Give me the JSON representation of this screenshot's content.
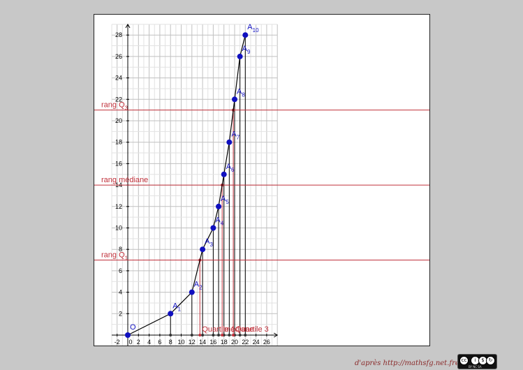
{
  "credit": "d'après http://mathsfg.net.free.fr",
  "license_badge": {
    "icon": "creative-commons-by-nc-sa-icon",
    "label": "BY NC SA"
  },
  "colors": {
    "points": "#1010c0",
    "curve": "#000000",
    "horizontal": "#c0303a",
    "vertical_red": "#c0303a",
    "grid": "#c0c0c0",
    "point_labels": "#1010c0",
    "annotations": "#c0303a"
  },
  "chart_data": {
    "type": "line",
    "xlim": [
      -3,
      28
    ],
    "ylim": [
      -1,
      29
    ],
    "grid": true,
    "x_ticks": [
      -2,
      0,
      2,
      4,
      6,
      8,
      10,
      12,
      14,
      16,
      18,
      20,
      22,
      24,
      26
    ],
    "y_ticks": [
      2,
      4,
      6,
      8,
      10,
      12,
      14,
      16,
      18,
      20,
      22,
      24,
      26,
      28
    ],
    "points": [
      {
        "name": "O",
        "sub": "",
        "x": 0,
        "y": 0
      },
      {
        "name": "A",
        "sub": "1",
        "x": 8,
        "y": 2
      },
      {
        "name": "A",
        "sub": "2",
        "x": 12,
        "y": 4
      },
      {
        "name": "A",
        "sub": "3",
        "x": 14,
        "y": 8
      },
      {
        "name": "A",
        "sub": "4",
        "x": 16,
        "y": 10
      },
      {
        "name": "A",
        "sub": "5",
        "x": 17,
        "y": 12
      },
      {
        "name": "A",
        "sub": "6",
        "x": 18,
        "y": 15
      },
      {
        "name": "A",
        "sub": "7",
        "x": 19,
        "y": 18
      },
      {
        "name": "A",
        "sub": "8",
        "x": 20,
        "y": 22
      },
      {
        "name": "A",
        "sub": "9",
        "x": 21,
        "y": 26
      },
      {
        "name": "A",
        "sub": "10",
        "x": 22,
        "y": 28
      }
    ],
    "horizontal_lines": [
      {
        "label": "rang Q",
        "sub": "1",
        "y": 7
      },
      {
        "label": "rang médiane",
        "sub": "",
        "y": 14
      },
      {
        "label": "rang Q",
        "sub": "3",
        "y": 21
      }
    ],
    "quantile_markers": [
      {
        "label": "Quartile 1",
        "x": 13.5,
        "y": 7
      },
      {
        "label": "médiane",
        "x": 17.67,
        "y": 14
      },
      {
        "label": "Quartile 3",
        "x": 19.75,
        "y": 21
      }
    ]
  }
}
